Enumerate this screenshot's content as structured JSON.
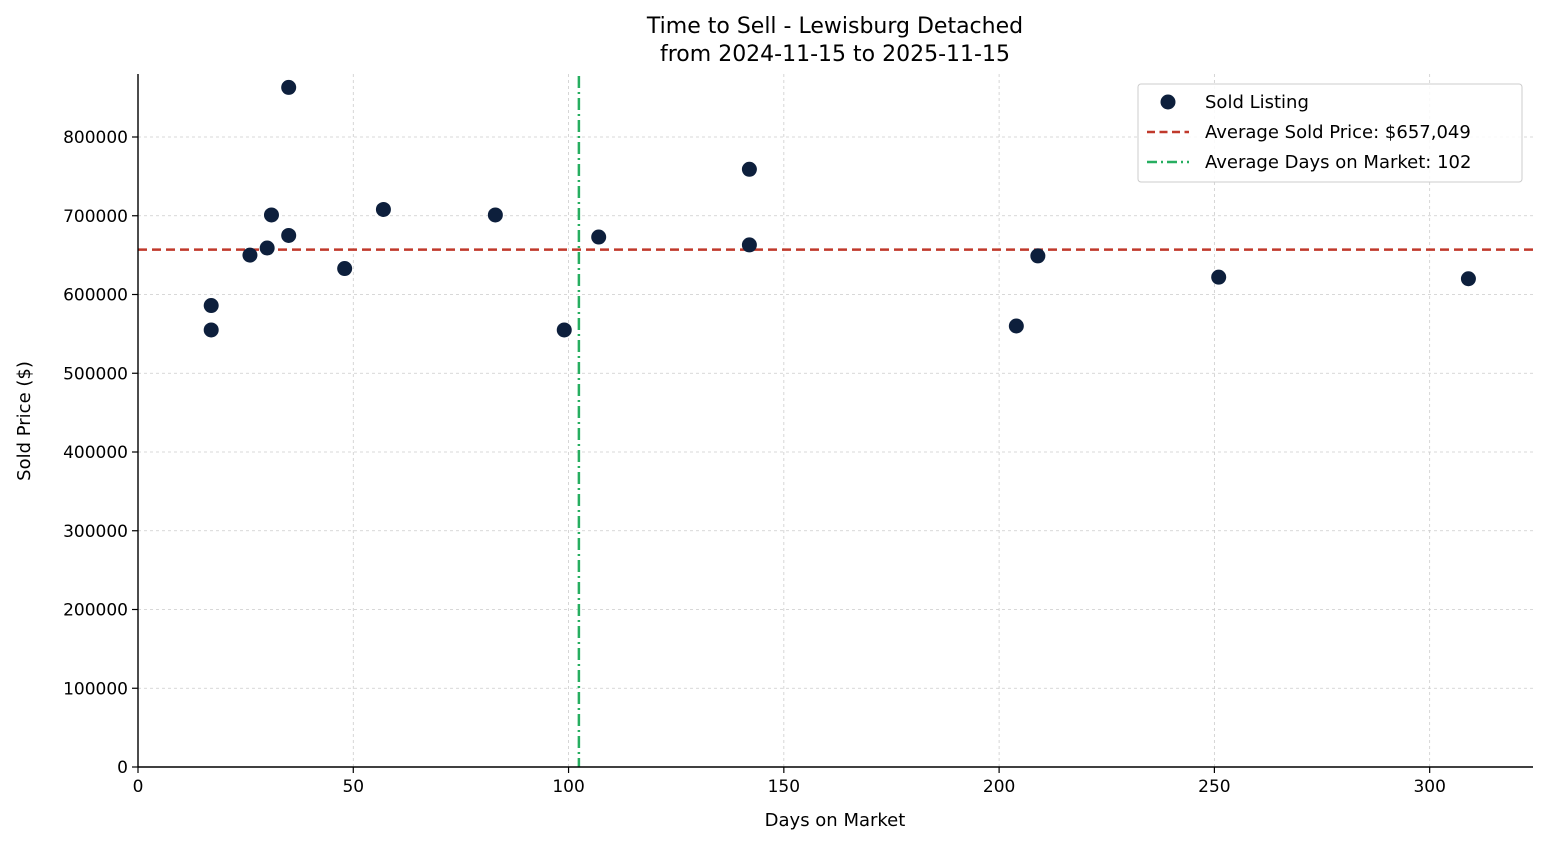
{
  "chart_data": {
    "type": "scatter",
    "title": "Time to Sell - Lewisburg Detached",
    "subtitle": "from 2024-11-15 to 2025-11-15",
    "xlabel": "Days on Market",
    "ylabel": "Sold Price ($)",
    "xlim": [
      0,
      324
    ],
    "ylim": [
      0,
      880000
    ],
    "xticks": [
      0,
      50,
      100,
      150,
      200,
      250,
      300
    ],
    "yticks": [
      0,
      100000,
      200000,
      300000,
      400000,
      500000,
      600000,
      700000,
      800000
    ],
    "grid": true,
    "legend_position": "top-right",
    "series": [
      {
        "name": "Sold Listing",
        "color": "#0d1f3c",
        "points": [
          {
            "x": 17,
            "y": 586000
          },
          {
            "x": 17,
            "y": 555000
          },
          {
            "x": 26,
            "y": 650000
          },
          {
            "x": 30,
            "y": 659000
          },
          {
            "x": 31,
            "y": 701000
          },
          {
            "x": 35,
            "y": 863000
          },
          {
            "x": 35,
            "y": 675000
          },
          {
            "x": 48,
            "y": 633000
          },
          {
            "x": 57,
            "y": 708000
          },
          {
            "x": 83,
            "y": 701000
          },
          {
            "x": 99,
            "y": 555000
          },
          {
            "x": 107,
            "y": 673000
          },
          {
            "x": 142,
            "y": 759000
          },
          {
            "x": 142,
            "y": 663000
          },
          {
            "x": 204,
            "y": 560000
          },
          {
            "x": 209,
            "y": 649000
          },
          {
            "x": 251,
            "y": 622000
          },
          {
            "x": 309,
            "y": 620000
          }
        ]
      }
    ],
    "reference_lines": [
      {
        "orientation": "horizontal",
        "value": 657049,
        "label": "Average Sold Price: $657,049",
        "color": "#c0392b",
        "style": "dashed"
      },
      {
        "orientation": "vertical",
        "value": 102.4,
        "label": "Average Days on Market: 102",
        "color": "#27ae60",
        "style": "dashdot"
      }
    ]
  }
}
